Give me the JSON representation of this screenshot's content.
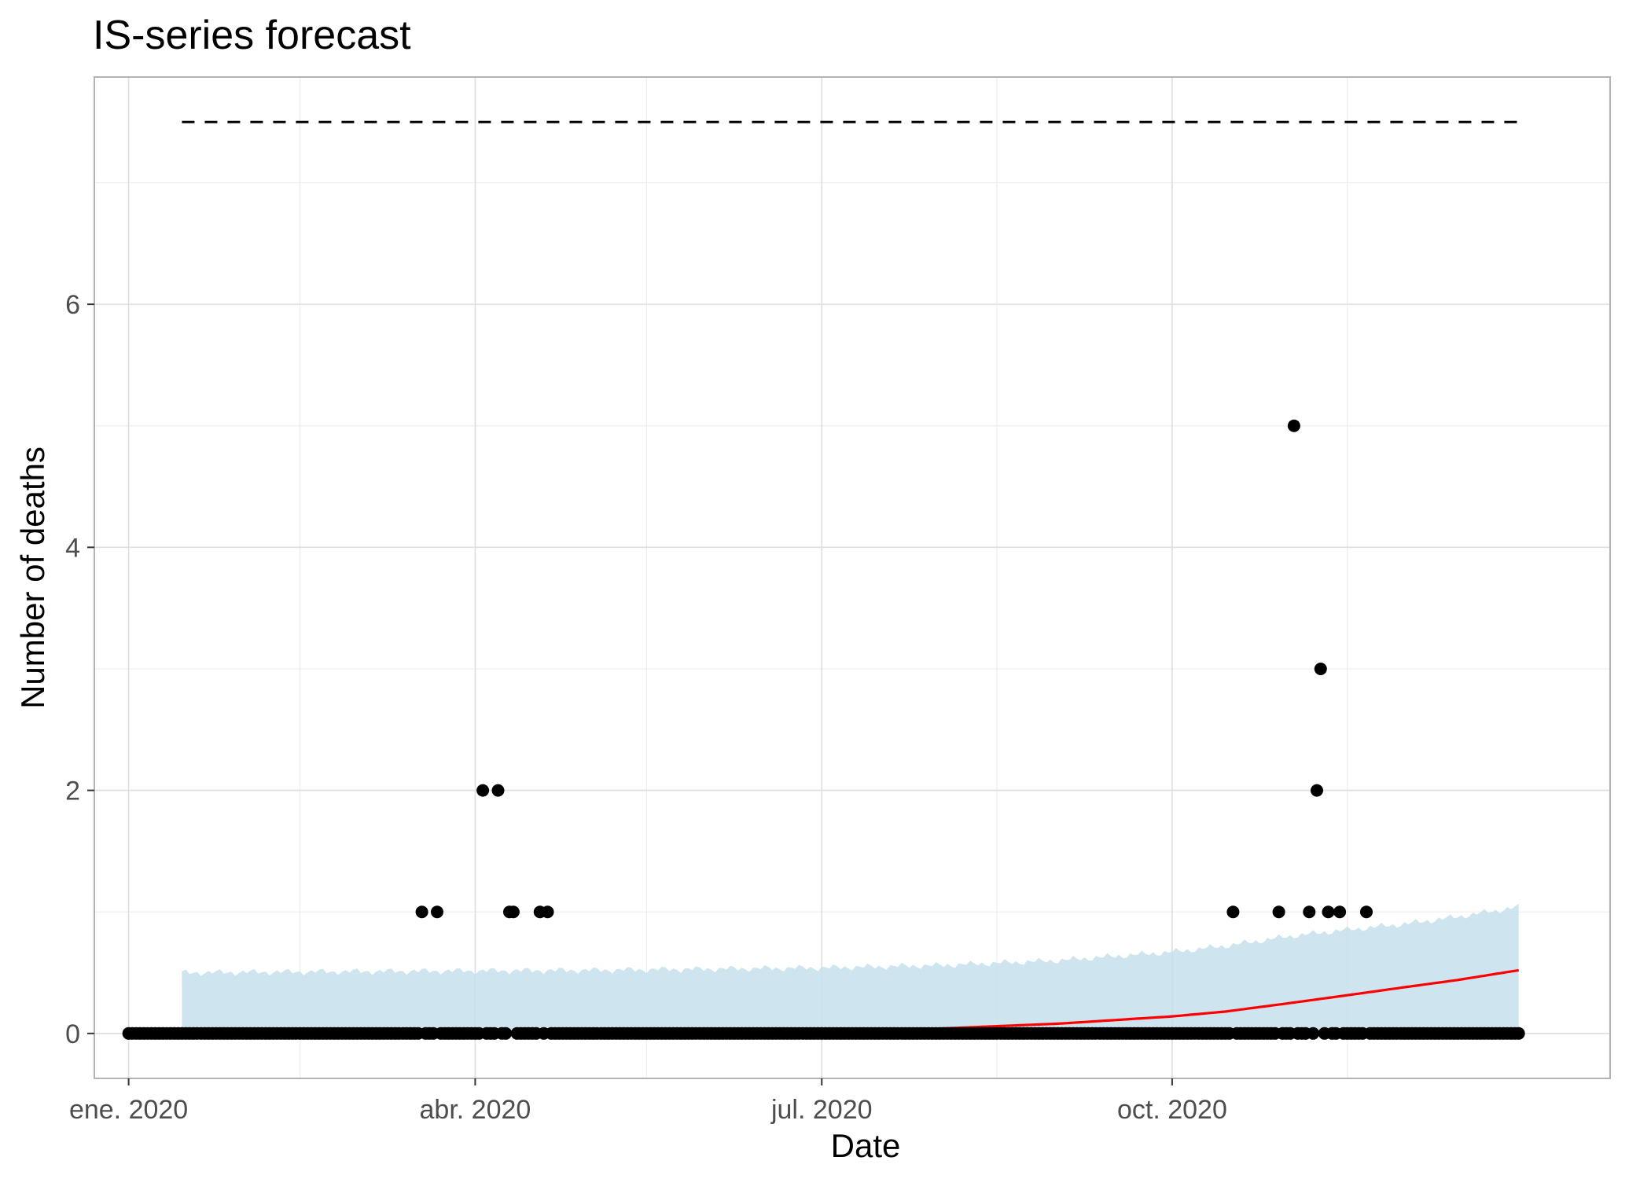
{
  "chart_data": {
    "type": "scatter",
    "title": "IS-series forecast",
    "xlabel": "Date",
    "ylabel": "Number of deaths",
    "x_range": [
      "2019-12-23",
      "2021-01-24"
    ],
    "y_range": [
      -0.37,
      7.87
    ],
    "x_ticks": [
      {
        "date": "2020-01-01",
        "label": "ene. 2020"
      },
      {
        "date": "2020-04-01",
        "label": "abr. 2020"
      },
      {
        "date": "2020-07-01",
        "label": "jul. 2020"
      },
      {
        "date": "2020-10-01",
        "label": "oct. 2020"
      }
    ],
    "x_minor_ticks": [
      "2020-02-15",
      "2020-05-16",
      "2020-08-16",
      "2020-11-16"
    ],
    "y_ticks": [
      0,
      2,
      4,
      6
    ],
    "y_minor_ticks": [
      1,
      3,
      5,
      7
    ],
    "grid": true,
    "colors": {
      "points": "#000000",
      "forecast": "#ff0000",
      "band": "#c6dfec",
      "threshold": "#000000",
      "grid": "#dedede",
      "panel_border": "#b3b3b3"
    },
    "observed": {
      "zero_range": [
        "2020-01-01",
        "2020-12-31"
      ],
      "nonzero": [
        {
          "date": "2020-03-18",
          "value": 1
        },
        {
          "date": "2020-03-22",
          "value": 1
        },
        {
          "date": "2020-04-03",
          "value": 2
        },
        {
          "date": "2020-04-07",
          "value": 2
        },
        {
          "date": "2020-04-10",
          "value": 1
        },
        {
          "date": "2020-04-11",
          "value": 1
        },
        {
          "date": "2020-04-18",
          "value": 1
        },
        {
          "date": "2020-04-20",
          "value": 1
        },
        {
          "date": "2020-10-17",
          "value": 1
        },
        {
          "date": "2020-10-29",
          "value": 1
        },
        {
          "date": "2020-11-02",
          "value": 5
        },
        {
          "date": "2020-11-06",
          "value": 1
        },
        {
          "date": "2020-11-08",
          "value": 2
        },
        {
          "date": "2020-11-09",
          "value": 3
        },
        {
          "date": "2020-11-11",
          "value": 1
        },
        {
          "date": "2020-11-14",
          "value": 1
        },
        {
          "date": "2020-11-21",
          "value": 1
        }
      ]
    },
    "forecast_mean": {
      "dates": [
        "2020-01-15",
        "2020-03-01",
        "2020-05-01",
        "2020-07-01",
        "2020-08-01",
        "2020-09-01",
        "2020-10-01",
        "2020-10-15",
        "2020-11-01",
        "2020-11-15",
        "2020-12-01",
        "2020-12-15",
        "2020-12-31"
      ],
      "values": [
        0.0,
        0.005,
        0.01,
        0.02,
        0.04,
        0.08,
        0.14,
        0.18,
        0.25,
        0.31,
        0.38,
        0.44,
        0.52
      ]
    },
    "forecast_upper": {
      "dates": [
        "2020-01-15",
        "2020-03-01",
        "2020-05-01",
        "2020-07-01",
        "2020-08-01",
        "2020-09-01",
        "2020-10-01",
        "2020-10-15",
        "2020-11-01",
        "2020-11-15",
        "2020-12-01",
        "2020-12-15",
        "2020-12-31"
      ],
      "values": [
        0.5,
        0.51,
        0.52,
        0.54,
        0.56,
        0.6,
        0.67,
        0.72,
        0.8,
        0.85,
        0.9,
        0.96,
        1.04
      ]
    },
    "threshold": {
      "start": "2020-01-15",
      "end": "2020-12-31",
      "upper": 7.5,
      "lower": 0,
      "lower_start": "2020-12-19"
    }
  }
}
